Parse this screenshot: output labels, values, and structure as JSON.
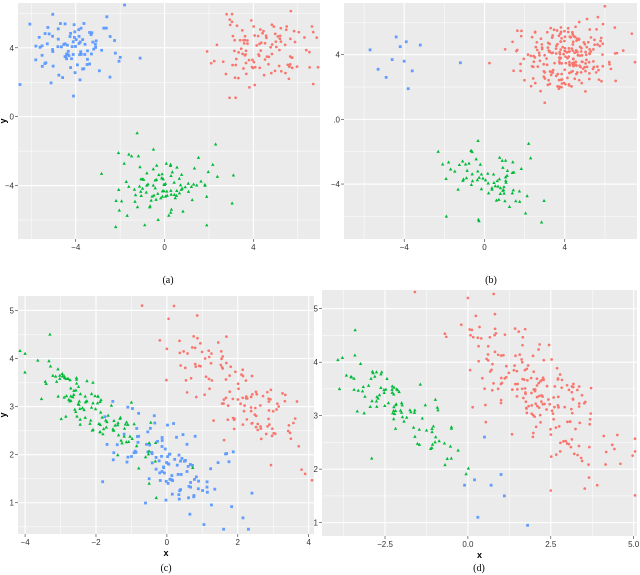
{
  "colors": {
    "red": "#f8766d",
    "green": "#00ba38",
    "blue": "#619cff",
    "panel": "#ebebeb",
    "grid": "#ffffff"
  },
  "chart_data": [
    {
      "type": "scatter",
      "caption": "(a)",
      "xlabel": "",
      "ylabel": "y",
      "xlim": [
        -6.6,
        7.0
      ],
      "ylim": [
        -7.1,
        6.6
      ],
      "xticks": [
        -4,
        0,
        4
      ],
      "yticks": [
        -4,
        0,
        4
      ],
      "xtick_labels": [
        "−4",
        "0",
        "4"
      ],
      "ytick_labels": [
        "−4",
        "0",
        "4"
      ],
      "grid": true,
      "legend": "none",
      "series": [
        {
          "color": "red",
          "marker": "circle",
          "n": 110,
          "center": [
            4.4,
            3.8
          ],
          "spread": [
            1.05,
            0.95
          ],
          "corr": 0,
          "seed": 11,
          "extra": [
            [
              6.3,
              4.6
            ],
            [
              2.1,
              3.1
            ],
            [
              3.2,
              1.1
            ],
            [
              5.6,
              2.2
            ]
          ]
        },
        {
          "color": "blue",
          "marker": "square",
          "n": 90,
          "center": [
            -4.2,
            4.0
          ],
          "spread": [
            1.0,
            0.95
          ],
          "corr": 0,
          "seed": 23,
          "extra": [
            [
              -1.8,
              6.6
            ],
            [
              -2.6,
              5.8
            ],
            [
              -5.8,
              3.3
            ],
            [
              -4.1,
              1.2
            ],
            [
              -1.1,
              3.4
            ]
          ]
        },
        {
          "color": "green",
          "marker": "triangle",
          "n": 100,
          "center": [
            0.0,
            -3.9
          ],
          "spread": [
            1.05,
            0.95
          ],
          "corr": 0,
          "seed": 37,
          "extra": [
            [
              2.3,
              -1.6
            ],
            [
              3.1,
              -3.4
            ],
            [
              -2.2,
              -6.4
            ],
            [
              1.9,
              -6.3
            ],
            [
              -0.5,
              -1.9
            ]
          ]
        }
      ]
    },
    {
      "type": "scatter",
      "caption": "(b)",
      "xlabel": "",
      "ylabel": "",
      "xlim": [
        -7.0,
        7.6
      ],
      "ylim": [
        -7.4,
        7.2
      ],
      "xticks": [
        -4,
        0,
        4
      ],
      "yticks": [
        -4,
        0,
        4
      ],
      "xtick_labels": [
        "−4",
        "0",
        "4"
      ],
      "ytick_labels": [
        "−4",
        ".0",
        "4"
      ],
      "grid": true,
      "legend": "none",
      "series": [
        {
          "color": "red",
          "marker": "circle",
          "n": 230,
          "center": [
            4.0,
            3.9
          ],
          "spread": [
            1.1,
            1.0
          ],
          "corr": 0,
          "seed": 53,
          "extra": [
            [
              6.0,
              7.0
            ],
            [
              1.4,
              4.8
            ],
            [
              1.8,
              3.0
            ],
            [
              6.6,
              4.1
            ]
          ]
        },
        {
          "color": "blue",
          "marker": "square",
          "n": 0,
          "center": [
            0,
            0
          ],
          "spread": [
            0,
            0
          ],
          "corr": 0,
          "seed": 1,
          "extra": [
            [
              -5.7,
              4.3
            ],
            [
              -5.3,
              3.1
            ],
            [
              -4.9,
              2.6
            ],
            [
              -4.4,
              5.1
            ],
            [
              -4.2,
              4.5
            ],
            [
              -3.9,
              4.8
            ],
            [
              -4.0,
              3.6
            ],
            [
              -3.6,
              3.0
            ],
            [
              -3.8,
              1.9
            ],
            [
              -3.2,
              4.6
            ],
            [
              -1.2,
              3.5
            ],
            [
              -4.6,
              3.7
            ]
          ]
        },
        {
          "color": "green",
          "marker": "triangle",
          "n": 75,
          "center": [
            0.2,
            -3.6
          ],
          "spread": [
            1.2,
            1.0
          ],
          "corr": -0.35,
          "seed": 71,
          "extra": [
            [
              2.3,
              -2.4
            ],
            [
              2.2,
              -1.5
            ],
            [
              -1.9,
              -6.0
            ],
            [
              -0.3,
              -6.2
            ]
          ]
        }
      ]
    },
    {
      "type": "scatter",
      "caption": "(c)",
      "xlabel": "x",
      "ylabel": "y",
      "xlim": [
        -4.2,
        4.15
      ],
      "ylim": [
        0.35,
        5.3
      ],
      "xticks": [
        -4,
        -2,
        0,
        2,
        4
      ],
      "yticks": [
        1,
        2,
        3,
        4,
        5
      ],
      "xtick_labels": [
        "−4",
        "−2",
        "0",
        "2",
        "4"
      ],
      "ytick_labels": [
        "1",
        "2",
        "3",
        "4",
        "5"
      ],
      "grid": true,
      "legend": "none",
      "series": [
        {
          "color": "red",
          "marker": "circle",
          "n": 130,
          "center": [
            2.0,
            3.3
          ],
          "spread": [
            0.95,
            0.7
          ],
          "corr": -0.8,
          "seed": 101,
          "extra": [
            [
              -0.7,
              5.1
            ],
            [
              3.9,
              1.6
            ],
            [
              0.0,
              4.2
            ]
          ]
        },
        {
          "color": "blue",
          "marker": "square",
          "n": 110,
          "center": [
            0.1,
            1.85
          ],
          "spread": [
            0.85,
            0.55
          ],
          "corr": -0.6,
          "seed": 113,
          "extra": [
            [
              2.3,
              0.45
            ],
            [
              1.6,
              0.45
            ],
            [
              2.4,
              1.2
            ],
            [
              -0.5,
              1.5
            ]
          ]
        },
        {
          "color": "green",
          "marker": "triangle",
          "n": 120,
          "center": [
            -2.1,
            3.0
          ],
          "spread": [
            0.95,
            0.55
          ],
          "corr": -0.85,
          "seed": 127,
          "extra": [
            [
              -4.0,
              4.1
            ],
            [
              -3.3,
              4.5
            ],
            [
              -0.3,
              1.1
            ],
            [
              -0.5,
              1.4
            ]
          ]
        }
      ]
    },
    {
      "type": "scatter",
      "caption": "(d)",
      "xlabel": "x",
      "ylabel": "",
      "xlim": [
        -4.4,
        5.1
      ],
      "ylim": [
        0.75,
        5.35
      ],
      "xticks": [
        -2.5,
        0.0,
        2.5,
        5.0
      ],
      "yticks": [
        1,
        2,
        3,
        4,
        5
      ],
      "xtick_labels": [
        "−2.5",
        "0.0",
        "2.5",
        "5.0"
      ],
      "ytick_labels": [
        "1",
        "2",
        "3",
        "4",
        "5"
      ],
      "grid": true,
      "legend": "none",
      "series": [
        {
          "color": "red",
          "marker": "circle",
          "n": 200,
          "center": [
            2.1,
            3.45
          ],
          "spread": [
            1.15,
            0.7
          ],
          "corr": -0.75,
          "seed": 151,
          "extra": [
            [
              0.0,
              5.2
            ],
            [
              4.6,
              2.1
            ],
            [
              3.9,
              1.7
            ],
            [
              -0.2,
              4.7
            ],
            [
              2.5,
              1.6
            ]
          ]
        },
        {
          "color": "blue",
          "marker": "square",
          "n": 0,
          "center": [
            0,
            0
          ],
          "spread": [
            0,
            0
          ],
          "corr": 0,
          "seed": 1,
          "extra": [
            [
              0.5,
              2.6
            ],
            [
              0.2,
              1.8
            ],
            [
              0.3,
              1.1
            ],
            [
              0.7,
              1.7
            ],
            [
              1.0,
              1.9
            ],
            [
              1.1,
              1.5
            ],
            [
              1.8,
              0.95
            ],
            [
              -0.1,
              1.7
            ]
          ]
        },
        {
          "color": "green",
          "marker": "triangle",
          "n": 95,
          "center": [
            -1.9,
            3.05
          ],
          "spread": [
            1.0,
            0.55
          ],
          "corr": -0.8,
          "seed": 173,
          "extra": [
            [
              -3.4,
              4.6
            ],
            [
              -1.6,
              3.1
            ],
            [
              -0.5,
              2.2
            ],
            [
              -2.9,
              2.2
            ]
          ]
        }
      ]
    }
  ]
}
